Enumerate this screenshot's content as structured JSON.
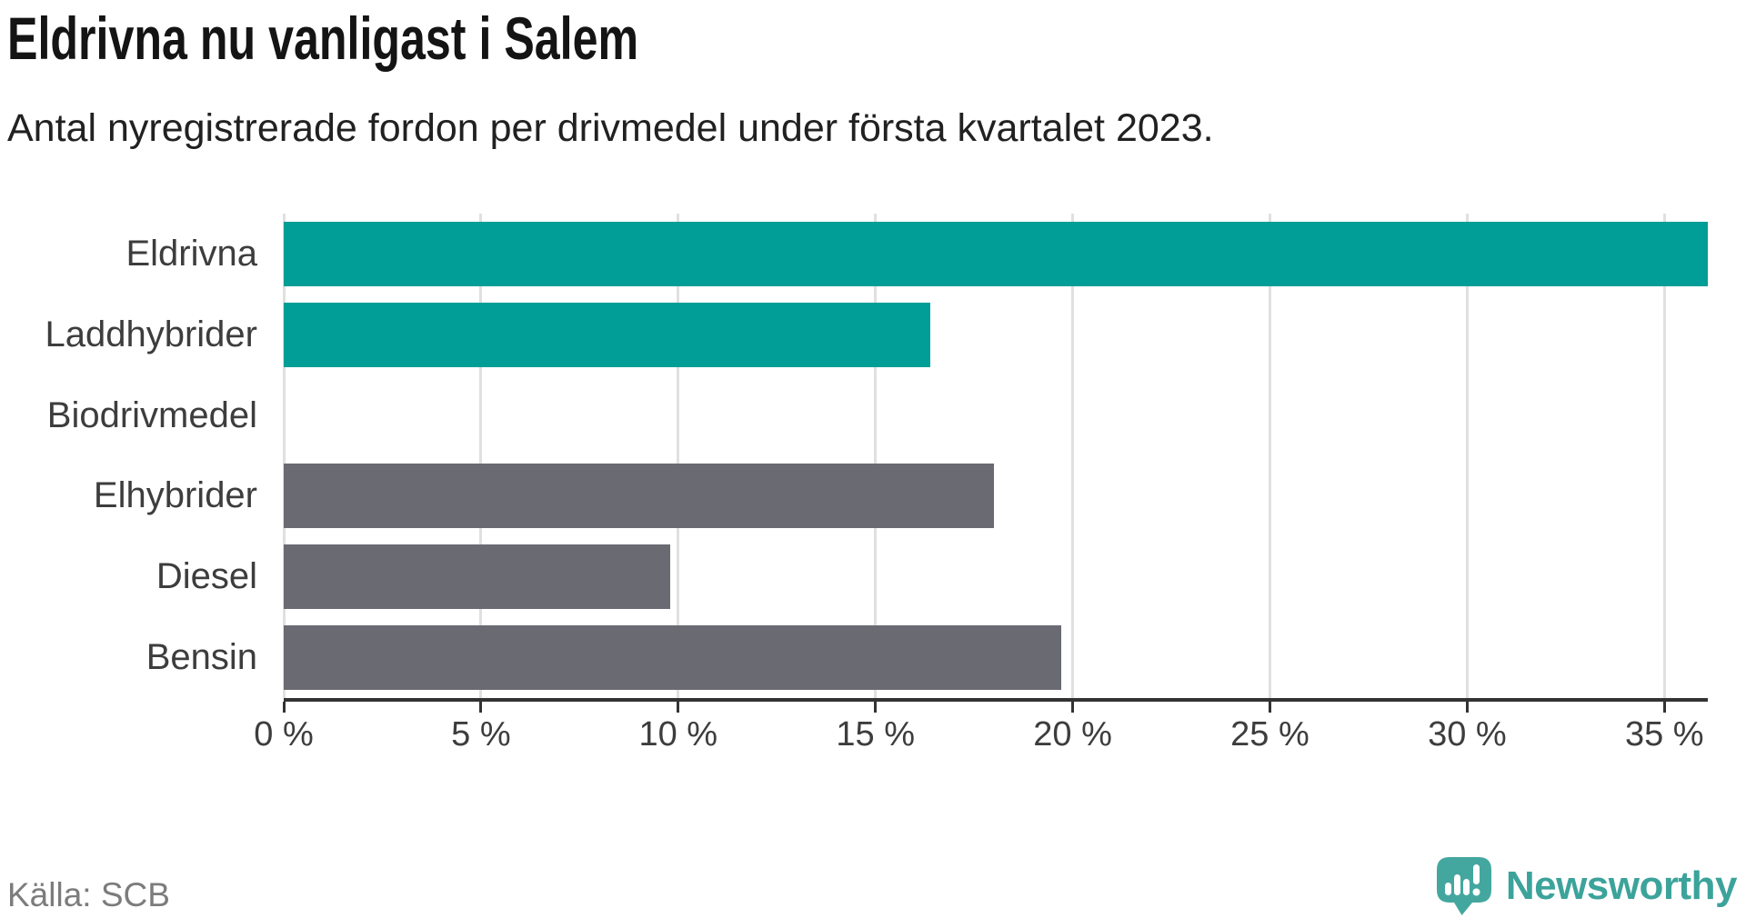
{
  "title": "Eldrivna nu vanligast i Salem",
  "subtitle": "Antal nyregistrerade fordon per drivmedel under första kvartalet 2023.",
  "source": "Källa: SCB",
  "branding": {
    "name": "Newsworthy",
    "icon": "newsworthy-speech-bubble-bar-chart-icon"
  },
  "colors": {
    "bar_highlight": "#009E96",
    "bar_default": "#6A6A72",
    "grid": "#E0E0E0",
    "axis": "#333333",
    "logo_icon": "#44A79F",
    "logo_text": "#3CA39B"
  },
  "chart_data": {
    "type": "bar",
    "orientation": "horizontal",
    "title": "Eldrivna nu vanligast i Salem",
    "subtitle": "Antal nyregistrerade fordon per drivmedel under första kvartalet 2023.",
    "categories": [
      "Eldrivna",
      "Laddhybrider",
      "Biodrivmedel",
      "Elhybrider",
      "Diesel",
      "Bensin"
    ],
    "values": [
      36.1,
      16.4,
      0,
      18.0,
      9.8,
      19.7
    ],
    "unit": "%",
    "highlighted_categories": [
      "Eldrivna",
      "Laddhybrider"
    ],
    "xlim": [
      0,
      36.1
    ],
    "x_ticks": [
      0,
      5,
      10,
      15,
      20,
      25,
      30,
      35
    ],
    "x_tick_labels": [
      "0 %",
      "5 %",
      "10 %",
      "15 %",
      "20 %",
      "25 %",
      "30 %",
      "35 %"
    ],
    "grid": true,
    "legend": false,
    "ylabel": "",
    "xlabel": ""
  }
}
